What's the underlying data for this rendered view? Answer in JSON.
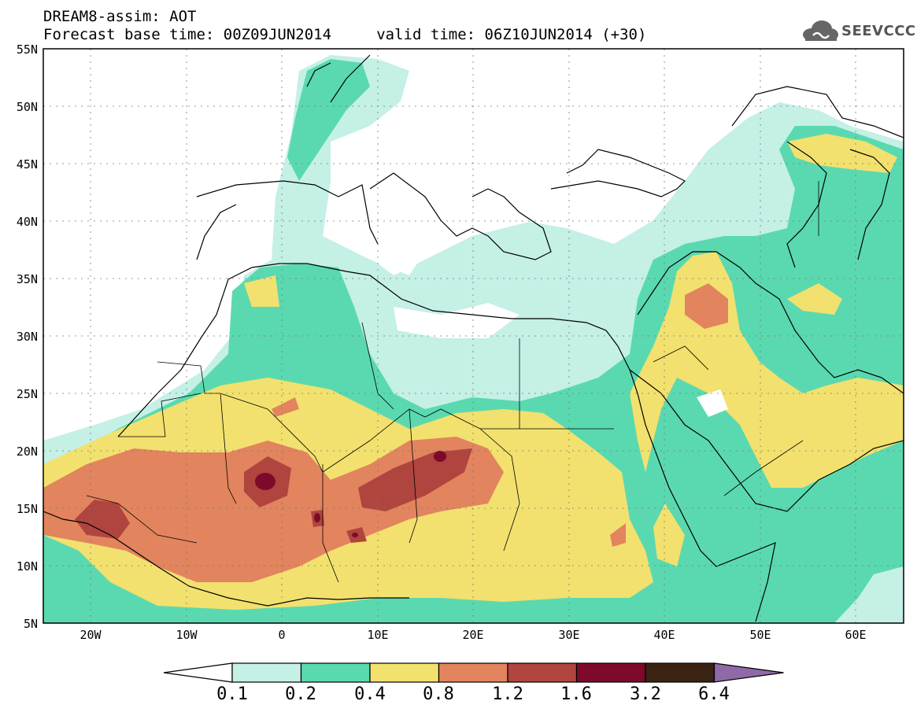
{
  "header": {
    "line1": "DREAM8-assim: AOT",
    "line2": "Forecast base time: 00Z09JUN2014     valid time: 06Z10JUN2014 (+30)"
  },
  "logo": {
    "text": "SEEVCCC",
    "icon": "cloud-icon"
  },
  "map": {
    "lon_range": [
      -25,
      65
    ],
    "lat_range": [
      5,
      55
    ],
    "lat_ticks": [
      "55N",
      "50N",
      "45N",
      "40N",
      "35N",
      "30N",
      "25N",
      "20N",
      "15N",
      "10N",
      "5N"
    ],
    "lon_ticks": [
      "20W",
      "10W",
      "0",
      "10E",
      "20E",
      "30E",
      "40E",
      "50E",
      "60E"
    ]
  },
  "colorbar": {
    "labels": [
      "0.1",
      "0.2",
      "0.4",
      "0.8",
      "1.2",
      "1.6",
      "3.2",
      "6.4"
    ],
    "colors": [
      "#ffffff",
      "#c4f0e6",
      "#5ad9b0",
      "#f2e16e",
      "#e2845e",
      "#b0443e",
      "#7d0a2a",
      "#3a2312",
      "#8e6aa6"
    ]
  }
}
